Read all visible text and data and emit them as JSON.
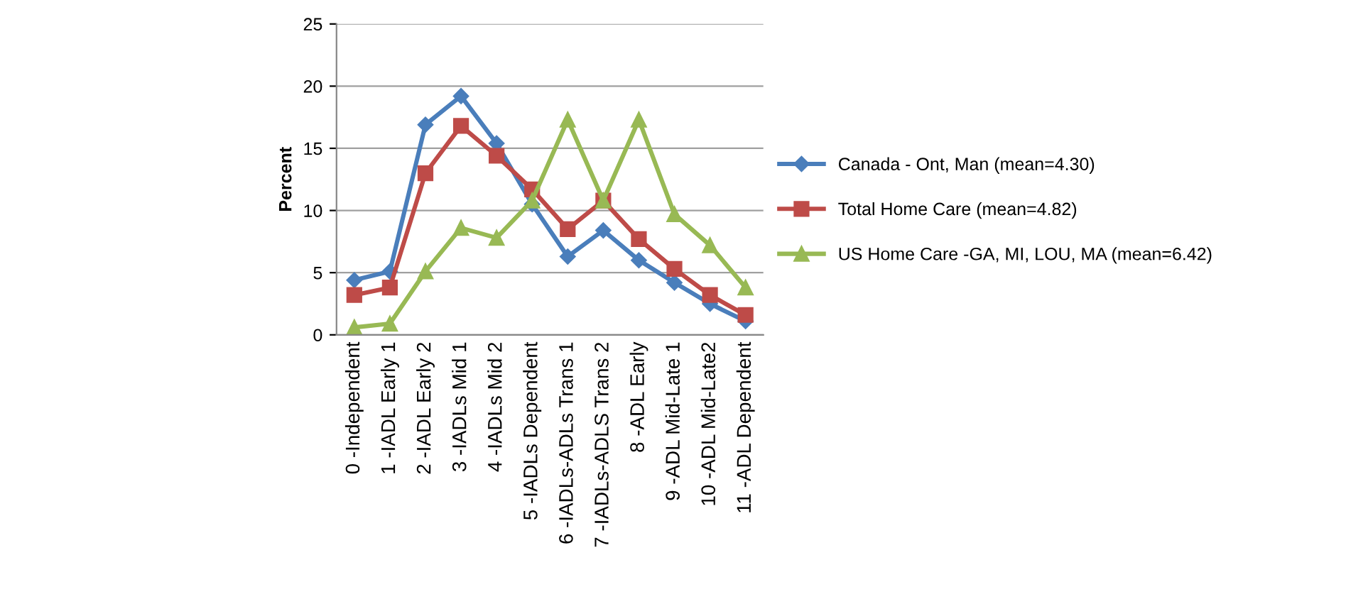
{
  "chart_data": {
    "type": "line",
    "ylabel": "Percent",
    "categories": [
      "0 -Independent",
      "1 -IADL Early 1",
      "2 -IADL Early 2",
      "3 -IADLs Mid 1",
      "4 -IADLs Mid 2",
      "5 -IADLs Dependent",
      "6 -IADLs-ADLs Trans 1",
      "7 -IADLs-ADLS Trans 2",
      "8 -ADL Early",
      "9 -ADL Mid-Late 1",
      "10 -ADL Mid-Late2",
      "11 -ADL Dependent"
    ],
    "series": [
      {
        "name": "Canada - Ont, Man (mean=4.30)",
        "color": "#4a7ebb",
        "marker": "diamond",
        "values": [
          4.4,
          5.1,
          16.9,
          19.2,
          15.4,
          10.5,
          6.3,
          8.4,
          6.0,
          4.2,
          2.5,
          1.1
        ]
      },
      {
        "name": "Total Home Care (mean=4.82)",
        "color": "#be4b48",
        "marker": "square",
        "values": [
          3.2,
          3.8,
          13.0,
          16.8,
          14.4,
          11.7,
          8.5,
          10.8,
          7.7,
          5.3,
          3.2,
          1.6
        ]
      },
      {
        "name": "US Home Care -GA, MI, LOU, MA (mean=6.42)",
        "color": "#98b954",
        "marker": "triangle",
        "values": [
          0.6,
          0.9,
          5.1,
          8.6,
          7.8,
          10.8,
          17.3,
          10.8,
          17.3,
          9.7,
          7.2,
          3.8
        ]
      }
    ],
    "ylim": [
      0,
      25
    ],
    "yticks": [
      0,
      5,
      10,
      15,
      20,
      25
    ],
    "grid": "y",
    "legend": "right",
    "line_style": "solid"
  }
}
